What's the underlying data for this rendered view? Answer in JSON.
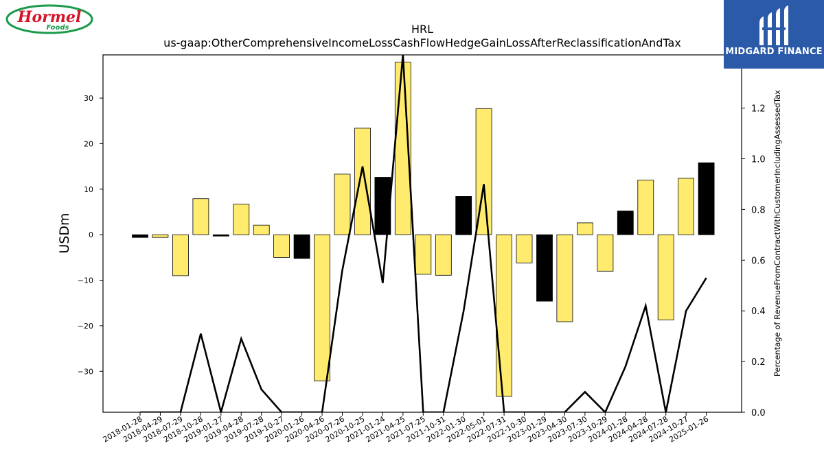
{
  "brand_left": {
    "name": "Hormel",
    "sub": "Foods"
  },
  "brand_right": {
    "name": "MIDGARD FINANCE"
  },
  "chart_data": {
    "type": "bar",
    "title": "HRL",
    "subtitle": "us-gaap:OtherComprehensiveIncomeLossCashFlowHedgeGainLossAfterReclassificationAndTax",
    "ylabel": "USDm",
    "y2label": "Percentage of RevenueFromContractWithCustomerIncludingAssessedTax",
    "ylim": [
      -39,
      39.5
    ],
    "y2lim": [
      0,
      1.41
    ],
    "yticks": [
      -30,
      -20,
      -10,
      0,
      10,
      20,
      30
    ],
    "y2ticks": [
      0.0,
      0.2,
      0.4,
      0.6,
      0.8,
      1.0,
      1.2
    ],
    "grid": false,
    "colors": {
      "positive_year_end": "#000000",
      "bar": "#ffeb6e",
      "line": "#000000"
    },
    "categories": [
      "2018-01-28",
      "2018-04-29",
      "2018-07-29",
      "2018-10-28",
      "2019-01-27",
      "2019-04-28",
      "2019-07-28",
      "2019-10-27",
      "2020-01-26",
      "2020-04-26",
      "2020-07-26",
      "2020-10-25",
      "2021-01-24",
      "2021-04-25",
      "2021-07-25",
      "2021-10-31",
      "2022-01-30",
      "2022-05-01",
      "2022-07-31",
      "2022-10-30",
      "2023-01-29",
      "2023-04-30",
      "2023-07-30",
      "2023-10-29",
      "2024-01-28",
      "2024-04-28",
      "2024-07-28",
      "2024-10-27",
      "2025-01-26"
    ],
    "values": [
      -0.6,
      -0.6,
      -9.0,
      7.9,
      -0.3,
      6.7,
      2.1,
      -5.0,
      -5.2,
      -32.1,
      13.3,
      23.4,
      12.6,
      37.9,
      -8.7,
      -8.9,
      8.4,
      27.7,
      -35.5,
      -6.2,
      -14.6,
      -19.1,
      2.6,
      -8.0,
      5.2,
      12.0,
      -18.7,
      12.4,
      15.8
    ],
    "highlight": [
      true,
      false,
      false,
      false,
      true,
      false,
      false,
      false,
      true,
      false,
      false,
      false,
      true,
      false,
      false,
      false,
      true,
      false,
      false,
      false,
      true,
      false,
      false,
      false,
      true,
      false,
      false,
      false,
      true
    ],
    "line_values": [
      0.0,
      0.0,
      0.0,
      0.31,
      0.0,
      0.29,
      0.09,
      0.0,
      0.0,
      0.0,
      0.56,
      0.97,
      0.51,
      1.41,
      0.0,
      0.0,
      0.4,
      0.9,
      0.0,
      0.0,
      0.0,
      0.0,
      0.08,
      0.0,
      0.18,
      0.42,
      0.0,
      0.4,
      0.53
    ]
  }
}
